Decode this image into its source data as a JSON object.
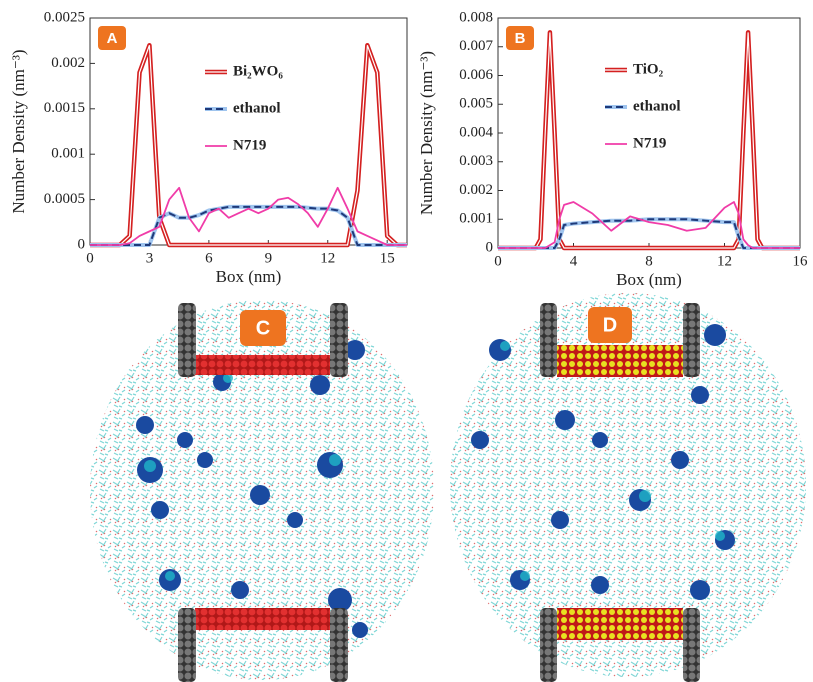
{
  "chart_data": [
    {
      "type": "line",
      "panel_label": "A",
      "ylabel": "Number Density (nm⁻³)",
      "xlabel": "Box (nm)",
      "xlim": [
        0,
        16
      ],
      "xticks": [
        0,
        3,
        6,
        9,
        12,
        15
      ],
      "ylim": [
        0,
        0.0025
      ],
      "yticks": [
        0,
        0.0005,
        0.001,
        0.0015,
        0.002,
        0.0025
      ],
      "x": [
        0,
        0.5,
        1,
        1.5,
        2,
        2.5,
        3,
        3.5,
        4,
        4.5,
        5,
        5.5,
        6,
        6.5,
        7,
        7.5,
        8,
        8.5,
        9,
        9.5,
        10,
        10.5,
        11,
        11.5,
        12,
        12.5,
        13,
        13.5,
        14,
        14.5,
        15,
        15.5,
        16
      ],
      "series": [
        {
          "name": "Bi₂WO₆",
          "color": "#d42020",
          "values": [
            0,
            0,
            0,
            0,
            0.0001,
            0.0019,
            0.0022,
            0.0003,
            0,
            0,
            0,
            0,
            0,
            0,
            0,
            0,
            0,
            0,
            0,
            0,
            0,
            0,
            0,
            0,
            0,
            0,
            0,
            0.0006,
            0.0022,
            0.0019,
            0.0001,
            0,
            0
          ]
        },
        {
          "name": "ethanol",
          "color": "#1f3a7a",
          "values": [
            0,
            0,
            0,
            0,
            0,
            0,
            0,
            0.0003,
            0.00035,
            0.0003,
            0.0003,
            0.00033,
            0.00038,
            0.0004,
            0.00042,
            0.00042,
            0.00042,
            0.00042,
            0.00042,
            0.00042,
            0.00042,
            0.00042,
            0.00041,
            0.0004,
            0.0004,
            0.00038,
            0.0003,
            0,
            0,
            0,
            0,
            0,
            0
          ]
        },
        {
          "name": "N719",
          "color": "#f03ca8",
          "values": [
            0,
            0,
            0,
            0,
            2e-05,
            0.0001,
            0.00015,
            0.0002,
            0.0005,
            0.00063,
            0.0003,
            0.00015,
            0.00035,
            0.0004,
            0.0003,
            0.00035,
            0.0004,
            0.00035,
            0.0004,
            0.0005,
            0.00052,
            0.00045,
            0.00035,
            0.0002,
            0.0004,
            0.00063,
            0.0004,
            0.00015,
            0.0001,
            5e-05,
            0,
            0,
            0
          ]
        }
      ]
    },
    {
      "type": "line",
      "panel_label": "B",
      "ylabel": "Number Density (nm⁻³)",
      "xlabel": "Box (nm)",
      "xlim": [
        0,
        16
      ],
      "xticks": [
        0,
        4,
        8,
        12,
        16
      ],
      "ylim": [
        0,
        0.008
      ],
      "yticks": [
        0,
        0.001,
        0.002,
        0.003,
        0.004,
        0.005,
        0.006,
        0.007,
        0.008
      ],
      "x": [
        0,
        1,
        2,
        2.25,
        2.5,
        2.75,
        3,
        3.25,
        3.5,
        4,
        5,
        6,
        7,
        8,
        9,
        10,
        11,
        12,
        12.5,
        12.75,
        13,
        13.25,
        13.5,
        13.75,
        14,
        15,
        16
      ],
      "series": [
        {
          "name": "TiO₂",
          "color": "#d42020",
          "values": [
            0,
            0,
            0,
            0.0003,
            0.004,
            0.0075,
            0.004,
            0.0003,
            0,
            0,
            0,
            0,
            0,
            0,
            0,
            0,
            0,
            0,
            0,
            0.0003,
            0.004,
            0.0075,
            0.004,
            0.0003,
            0,
            0,
            0
          ]
        },
        {
          "name": "ethanol",
          "color": "#1f3a7a",
          "values": [
            0,
            0,
            0,
            0,
            0,
            0,
            0,
            0.0003,
            0.0008,
            0.00085,
            0.0009,
            0.00095,
            0.00095,
            0.001,
            0.001,
            0.001,
            0.00095,
            0.0009,
            0.0009,
            0.0004,
            0,
            0,
            0,
            0,
            0,
            0,
            0
          ]
        },
        {
          "name": "N719",
          "color": "#f03ca8",
          "values": [
            0,
            0,
            0,
            0,
            0,
            0.0001,
            0.0002,
            0.001,
            0.0015,
            0.0016,
            0.0012,
            0.0006,
            0.0011,
            0.0009,
            0.0008,
            0.0006,
            0.0007,
            0.0014,
            0.0016,
            0.0012,
            0.0003,
            0.0001,
            0,
            0,
            0,
            0,
            0
          ]
        }
      ]
    }
  ],
  "panel_labels": [
    "C",
    "D"
  ]
}
